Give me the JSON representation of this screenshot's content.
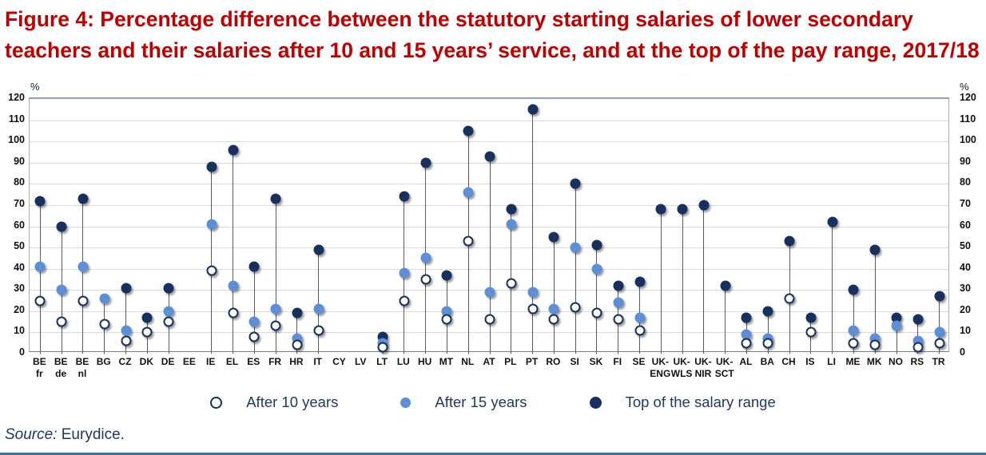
{
  "title": {
    "text": "Figure 4: Percentage difference between the statutory starting salaries of lower secondary teachers and their salaries after 10 and 15 years’ service, and at the top of the pay range, 2017/18"
  },
  "axis": {
    "unit": "%"
  },
  "chart_data": {
    "type": "scatter",
    "variant": "lollipop-dot-plot",
    "title": "Percentage difference between the statutory starting salaries of lower secondary teachers and their salaries after 10 and 15 years’ service, and at the top of the pay range, 2017/18",
    "unit": "%",
    "ylim": [
      0,
      120
    ],
    "ytick_step": 10,
    "grid": true,
    "legend_position": "bottom",
    "categories": [
      "BE fr",
      "BE de",
      "BE nl",
      "BG",
      "CZ",
      "DK",
      "DE",
      "EE",
      "IE",
      "EL",
      "ES",
      "FR",
      "HR",
      "IT",
      "CY",
      "LV",
      "LT",
      "LU",
      "HU",
      "MT",
      "NL",
      "AT",
      "PL",
      "PT",
      "RO",
      "SI",
      "SK",
      "FI",
      "SE",
      "UK-ENG",
      "UK-WLS",
      "UK-NIR",
      "UK-SCT",
      "AL",
      "BA",
      "CH",
      "IS",
      "LI",
      "ME",
      "MK",
      "NO",
      "RS",
      "TR"
    ],
    "series": [
      {
        "name": "After 10 years",
        "marker": "open-circle",
        "fill": "#FFFFFF",
        "border": "#17305E",
        "values": [
          25,
          15,
          25,
          14,
          6,
          10,
          15,
          null,
          39,
          19,
          8,
          13,
          4,
          11,
          null,
          null,
          3,
          25,
          35,
          16,
          53,
          16,
          33,
          21,
          16,
          22,
          19,
          16,
          11,
          null,
          null,
          null,
          null,
          5,
          5,
          26,
          10,
          null,
          5,
          4,
          null,
          3,
          5
        ]
      },
      {
        "name": "After 15 years",
        "marker": "filled-circle",
        "fill": "#5C8FD6",
        "values": [
          41,
          30,
          41,
          26,
          11,
          null,
          20,
          null,
          61,
          32,
          15,
          21,
          7,
          21,
          null,
          null,
          5,
          38,
          45,
          20,
          76,
          29,
          61,
          29,
          21,
          50,
          40,
          24,
          17,
          null,
          null,
          null,
          null,
          9,
          7,
          null,
          null,
          null,
          11,
          7,
          13,
          6,
          10
        ]
      },
      {
        "name": "Top of the salary range",
        "marker": "filled-circle",
        "fill": "#17305E",
        "values": [
          72,
          60,
          73,
          null,
          31,
          17,
          31,
          null,
          88,
          96,
          41,
          73,
          19,
          49,
          null,
          null,
          8,
          74,
          90,
          37,
          105,
          93,
          68,
          115,
          55,
          80,
          51,
          32,
          34,
          68,
          68,
          70,
          32,
          17,
          20,
          53,
          17,
          62,
          30,
          49,
          17,
          16,
          27
        ]
      }
    ]
  },
  "source": {
    "label": "Source:",
    "text": " Eurydice."
  },
  "colors": {
    "title_red": "#C00000",
    "navy": "#17305E",
    "mid_blue": "#5C8FD6",
    "legend_text": "#1F3864",
    "gridline": "#D9D9D9",
    "bottom_rule": "#2E75B6"
  }
}
